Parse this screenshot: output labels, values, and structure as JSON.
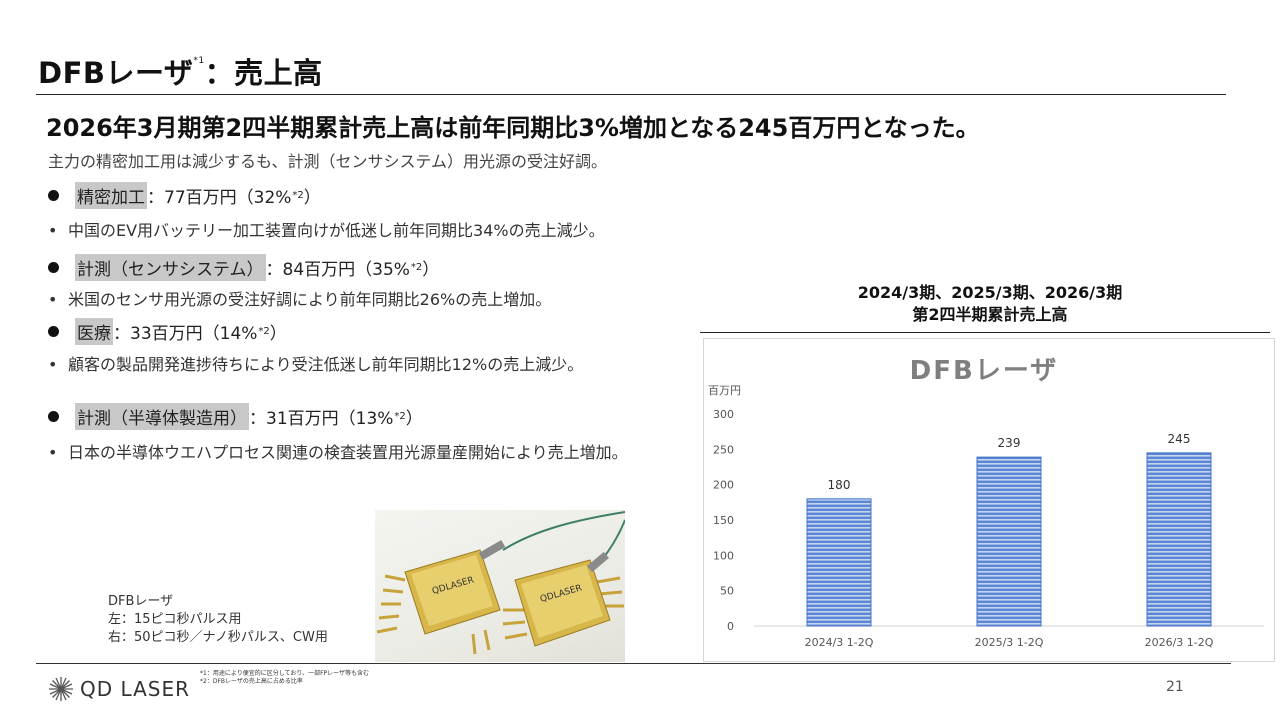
{
  "slide": {
    "title": "DFBレーザ",
    "title_sup": "*1",
    "title_suffix": "：売上高",
    "headline": "2026年3月期第2四半期累計売上高は前年同期比3%増加となる245百万円となった。",
    "subline": "主力の精密加工用は減少するも、計測（センサシステム）用光源の受注好調。"
  },
  "segments": [
    {
      "label": "精密加工",
      "value": "：77百万円（32%",
      "sup": "*2",
      "close": "）",
      "note": "中国のEV用バッテリー加工装置向けが低迷し前年同期比34%の売上減少。"
    },
    {
      "label": "計測（センサシステム）",
      "value": "：84百万円（35%",
      "sup": "*2",
      "close": "）",
      "note": "米国のセンサ用光源の受注好調により前年同期比26%の売上増加。"
    },
    {
      "label": "医療",
      "value": "：33百万円（14%",
      "sup": "*2",
      "close": "）",
      "note": "顧客の製品開発進捗待ちにより受注低迷し前年同期比12%の売上減少。"
    },
    {
      "label": "計測（半導体製造用）",
      "value": "：31百万円（13%",
      "sup": "*2",
      "close": "）",
      "note": "日本の半導体ウエハプロセス関連の検査装置用光源量産開始により売上増加。"
    }
  ],
  "photo": {
    "device_text_left": "QDLASER",
    "device_text_right": "QDLASER"
  },
  "caption": {
    "line1": "DFBレーザ",
    "line2": "左：15ピコ秒パルス用",
    "line3": "右：50ピコ秒／ナノ秒パルス、CW用"
  },
  "chart_heading": {
    "line1": "2024/3期、2025/3期、2026/3期",
    "line2": "第2四半期累計売上高"
  },
  "chart_data": {
    "type": "bar",
    "title": "DFBレーザ",
    "ylabel": "百万円",
    "categories": [
      "2024/3 1-2Q",
      "2025/3 1-2Q",
      "2026/3 1-2Q"
    ],
    "values": [
      180,
      239,
      245
    ],
    "ylim": [
      0,
      300
    ],
    "yticks": [
      0,
      50,
      100,
      150,
      200,
      250,
      300
    ],
    "grid": false,
    "bar_color": "#4472c4"
  },
  "footer": {
    "logo_text": "QD LASER",
    "note1": "*1：用途により便宜的に区分しており、一部FPレーザ等も含む",
    "note2": "*2：DFBレーザの売上高に占める比率",
    "page": "21"
  }
}
